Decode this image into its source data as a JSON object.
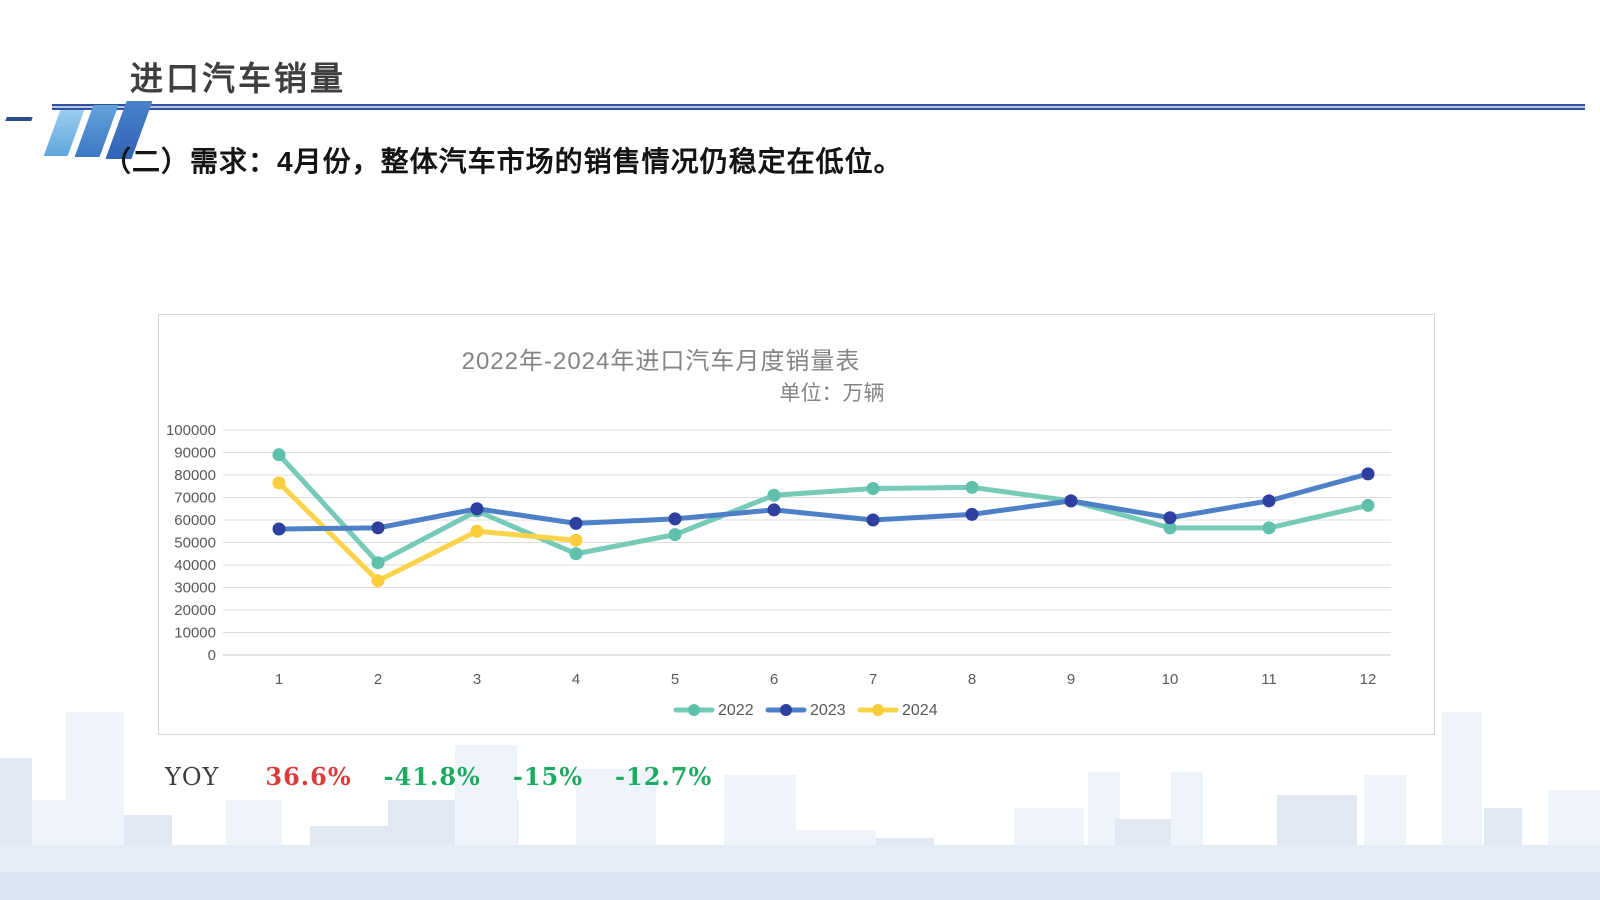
{
  "header": {
    "title": "进口汽车销量"
  },
  "subtitle": "（二）需求：4月份，整体汽车市场的销售情况仍稳定在低位。",
  "chart_data": {
    "type": "line",
    "title": "2022年-2024年进口汽车月度销量表",
    "unit_label": "单位：万辆",
    "categories": [
      "1",
      "2",
      "3",
      "4",
      "5",
      "6",
      "7",
      "8",
      "9",
      "10",
      "11",
      "12"
    ],
    "series": [
      {
        "name": "2022",
        "color": "#76cab7",
        "marker_color": "#5fc0ab",
        "values": [
          89000,
          41000,
          64000,
          45000,
          53500,
          71000,
          74000,
          74500,
          68500,
          56500,
          56500,
          66500
        ]
      },
      {
        "name": "2023",
        "color": "#4e80c8",
        "marker_color": "#2e3f9f",
        "values": [
          56000,
          56500,
          65000,
          58500,
          60500,
          64500,
          60000,
          62500,
          68500,
          61000,
          68500,
          80500
        ]
      },
      {
        "name": "2024",
        "color": "#fbd34a",
        "marker_color": "#f9cd3b",
        "values": [
          76500,
          33000,
          55000,
          51000
        ]
      }
    ],
    "ylim": [
      0,
      100000
    ],
    "ytick_step": 10000,
    "grid": true,
    "legend_position": "bottom",
    "xlabel": "",
    "ylabel": ""
  },
  "yoy": {
    "label": "YOY",
    "values": [
      {
        "text": "36.6%",
        "color": "#dd3a3a"
      },
      {
        "text": "-41.8%",
        "color": "#1faa62"
      },
      {
        "text": "-15%",
        "color": "#1faa62"
      },
      {
        "text": "-12.7%",
        "color": "#1faa62"
      }
    ]
  },
  "colors": {
    "accent_rule_navy": "#31519c",
    "grid_gray": "#dcdcdc",
    "axis_text": "#595959",
    "chart_text": "#848484"
  }
}
